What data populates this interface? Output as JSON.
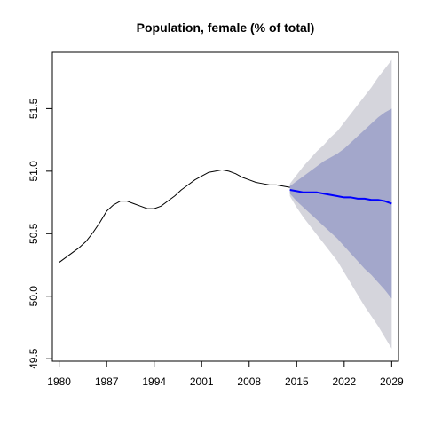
{
  "chart_data": {
    "type": "line",
    "title": "Population, female (% of total)",
    "xlabel": "",
    "ylabel": "",
    "xlim": [
      1979,
      2030
    ],
    "ylim": [
      49.48,
      51.95
    ],
    "x_ticks": [
      1980,
      1987,
      1994,
      2001,
      2008,
      2015,
      2022,
      2029
    ],
    "y_ticks": [
      49.5,
      50.0,
      50.5,
      51.0,
      51.5
    ],
    "y_tick_labels": [
      "49.5",
      "50.0",
      "50.5",
      "51.0",
      "51.5"
    ],
    "grid": false,
    "legend": "none",
    "colors": {
      "history": "#000000",
      "forecast": "#0000ff",
      "band_95": "#d5d5dc",
      "band_80": "#a3a7cb"
    },
    "series": [
      {
        "x": [
          1980,
          1981,
          1982,
          1983,
          1984,
          1985,
          1986,
          1987,
          1988,
          1989,
          1990,
          1991,
          1992,
          1993,
          1994,
          1995,
          1996,
          1997,
          1998,
          1999,
          2000,
          2001,
          2002,
          2003,
          2004,
          2005,
          2006,
          2007,
          2008,
          2009,
          2010,
          2011,
          2012,
          2013,
          2014
        ],
        "y": [
          50.27,
          50.31,
          50.35,
          50.39,
          50.44,
          50.51,
          50.59,
          50.68,
          50.73,
          50.76,
          50.76,
          50.74,
          50.72,
          50.7,
          50.7,
          50.72,
          50.76,
          50.8,
          50.85,
          50.89,
          50.93,
          50.96,
          50.99,
          51.0,
          51.01,
          51.0,
          50.98,
          50.95,
          50.93,
          50.91,
          50.9,
          50.89,
          50.89,
          50.88,
          50.87
        ]
      },
      {
        "x": [
          2014,
          2015,
          2016,
          2017,
          2018,
          2019,
          2020,
          2021,
          2022,
          2023,
          2024,
          2025,
          2026,
          2027,
          2028,
          2029
        ],
        "y": [
          50.85,
          50.84,
          50.83,
          50.83,
          50.83,
          50.82,
          50.81,
          50.8,
          50.79,
          50.79,
          50.78,
          50.78,
          50.77,
          50.77,
          50.76,
          50.74
        ],
        "lower_80": [
          50.82,
          50.76,
          50.71,
          50.66,
          50.61,
          50.56,
          50.51,
          50.46,
          50.4,
          50.34,
          50.28,
          50.22,
          50.17,
          50.11,
          50.05,
          49.98
        ],
        "upper_80": [
          50.88,
          50.92,
          50.96,
          51.0,
          51.04,
          51.08,
          51.11,
          51.14,
          51.18,
          51.23,
          51.28,
          51.33,
          51.38,
          51.43,
          51.47,
          51.5
        ],
        "lower_95": [
          50.8,
          50.71,
          50.63,
          50.56,
          50.49,
          50.42,
          50.35,
          50.28,
          50.19,
          50.1,
          50.01,
          49.92,
          49.84,
          49.76,
          49.67,
          49.58
        ],
        "upper_95": [
          50.9,
          50.97,
          51.04,
          51.1,
          51.16,
          51.21,
          51.27,
          51.32,
          51.39,
          51.46,
          51.53,
          51.6,
          51.67,
          51.75,
          51.82,
          51.89
        ]
      }
    ]
  }
}
